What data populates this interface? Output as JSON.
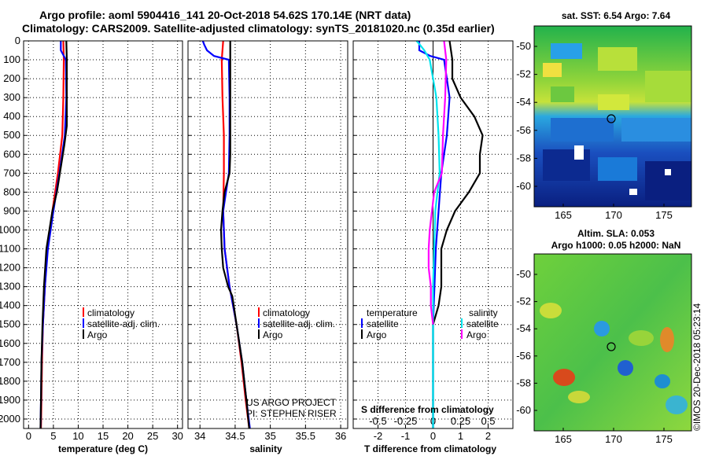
{
  "title_line1": "Argo profile: aoml 5904416_141 20-Oct-2018 54.62S 170.14E (NRT data)",
  "title_line2": "Climatology: CARS2009. Satellite-adjusted climatology: synTS_20181020.nc (0.35d earlier)",
  "depth_ticks": [
    "0",
    "100",
    "200",
    "300",
    "400",
    "500",
    "600",
    "700",
    "800",
    "900",
    "1000",
    "1100",
    "1200",
    "1300",
    "1400",
    "1500",
    "1600",
    "1700",
    "1800",
    "1900",
    "2000"
  ],
  "colors": {
    "climatology": "#ff0000",
    "satellite": "#0000ff",
    "argo": "#000000",
    "sat_salinity": "#00e5ee",
    "clim_salinity": "#ff00ff"
  },
  "panels": {
    "temperature": {
      "xlabel": "temperature (deg C)",
      "xticks": [
        "0",
        "5",
        "10",
        "15",
        "20",
        "25",
        "30"
      ],
      "legend": [
        "climatology",
        "satellite-adj. clim.",
        "Argo"
      ]
    },
    "salinity": {
      "xlabel": "salinity",
      "xticks": [
        "34",
        "34.5",
        "35",
        "35.5",
        "36"
      ],
      "legend": [
        "climatology",
        "satellite-adj. clim.",
        "Argo"
      ],
      "credit1": "US ARGO PROJECT",
      "credit2": "PI: STEPHEN RISER"
    },
    "difference": {
      "xlabel": "T difference from climatology",
      "xticks": [
        "-2",
        "-1",
        "0",
        "1",
        "2"
      ],
      "sticks": [
        "-0.5",
        "-0.25",
        "0",
        "0.25",
        "0.5"
      ],
      "slabel": "S difference from climatology",
      "legend_t_head": "temperature",
      "legend_t": [
        "satellite",
        "Argo"
      ],
      "legend_s_head": "salinity",
      "legend_s": [
        "satellite",
        "Argo"
      ]
    }
  },
  "chart_data": [
    {
      "type": "line",
      "title": "",
      "xlabel": "temperature (deg C)",
      "ylabel": "",
      "xlim": [
        -1,
        31
      ],
      "ylim": [
        2050,
        0
      ],
      "series": [
        {
          "name": "climatology",
          "depth": [
            0,
            100,
            300,
            500,
            700,
            900,
            1100,
            1300,
            1500,
            1700,
            1900,
            2050
          ],
          "values": [
            7.0,
            7.1,
            7.0,
            6.8,
            5.9,
            4.8,
            3.8,
            3.3,
            2.9,
            2.7,
            2.6,
            2.5
          ]
        },
        {
          "name": "satellite-adj. clim.",
          "depth": [
            0,
            50,
            100,
            300,
            500,
            700,
            900,
            1100,
            1300,
            1500,
            1700,
            1900,
            2050
          ],
          "values": [
            6.5,
            6.5,
            7.5,
            7.6,
            7.3,
            6.2,
            5.0,
            3.9,
            3.3,
            2.9,
            2.6,
            2.5,
            2.4
          ]
        },
        {
          "name": "Argo",
          "depth": [
            0,
            100,
            300,
            450,
            550,
            650,
            800,
            900,
            1100,
            1300,
            1500,
            1700,
            1900,
            2050
          ],
          "values": [
            7.6,
            7.7,
            7.7,
            7.7,
            7.2,
            6.6,
            5.7,
            4.8,
            3.6,
            3.1,
            2.8,
            2.6,
            2.5,
            2.4
          ]
        }
      ]
    },
    {
      "type": "line",
      "title": "",
      "xlabel": "salinity",
      "ylabel": "",
      "xlim": [
        33.83,
        36.1
      ],
      "ylim": [
        2050,
        0
      ],
      "series": [
        {
          "name": "climatology",
          "depth": [
            0,
            100,
            300,
            500,
            700,
            900,
            1100,
            1300,
            1500,
            1700,
            1900,
            2050
          ],
          "values": [
            34.33,
            34.31,
            34.32,
            34.34,
            34.34,
            34.33,
            34.35,
            34.42,
            34.52,
            34.59,
            34.65,
            34.7
          ]
        },
        {
          "name": "satellite-adj. clim.",
          "depth": [
            0,
            20,
            50,
            80,
            100,
            300,
            500,
            700,
            900,
            1100,
            1300,
            1500,
            1700,
            1900,
            2050
          ],
          "values": [
            34.04,
            34.06,
            34.1,
            34.2,
            34.41,
            34.42,
            34.42,
            34.41,
            34.33,
            34.35,
            34.42,
            34.52,
            34.6,
            34.66,
            34.71
          ]
        },
        {
          "name": "Argo",
          "depth": [
            0,
            100,
            300,
            600,
            700,
            800,
            900,
            1000,
            1100,
            1200,
            1300,
            1350,
            1500,
            1700,
            1900,
            2050
          ],
          "values": [
            34.43,
            34.43,
            34.43,
            34.43,
            34.42,
            34.35,
            34.32,
            34.3,
            34.31,
            34.33,
            34.4,
            34.46,
            34.52,
            34.6,
            34.66,
            34.7
          ]
        }
      ]
    },
    {
      "type": "line",
      "title": "",
      "xlabel": "T difference from climatology",
      "xlabel2": "S difference from climatology",
      "ylabel": "",
      "xlim": [
        -2.9,
        2.9
      ],
      "x2lim": [
        -0.725,
        0.725
      ],
      "ylim": [
        2050,
        0
      ],
      "series": [
        {
          "name": "temperature satellite",
          "axis": "T",
          "depth": [
            0,
            25,
            50,
            80,
            100,
            300,
            500,
            700,
            900,
            1100,
            1300,
            1500,
            1700,
            1900,
            2050
          ],
          "values": [
            -0.5,
            -0.5,
            -0.5,
            -0.1,
            0.4,
            0.6,
            0.5,
            0.3,
            0.2,
            0.1,
            0.05,
            0.0,
            0.0,
            0.0,
            0.0
          ]
        },
        {
          "name": "temperature Argo",
          "axis": "T",
          "depth": [
            0,
            100,
            200,
            300,
            400,
            500,
            600,
            700,
            800,
            900,
            1000,
            1100,
            1300,
            1400,
            1500,
            1700,
            1900,
            2050
          ],
          "values": [
            0.6,
            0.7,
            0.7,
            1.0,
            1.5,
            1.8,
            1.7,
            1.7,
            1.3,
            0.8,
            0.5,
            0.3,
            0.3,
            0.2,
            0.0,
            0.0,
            0.0,
            0.0
          ]
        },
        {
          "name": "salinity satellite",
          "axis": "S",
          "depth": [
            0,
            20,
            50,
            100,
            300,
            500,
            700,
            900,
            1100,
            1300,
            1500,
            1700,
            1900,
            2050
          ],
          "values": [
            -0.15,
            -0.12,
            -0.08,
            -0.03,
            0.03,
            0.05,
            0.06,
            0.02,
            0.01,
            0.0,
            0.0,
            0.0,
            0.0,
            0.0
          ]
        },
        {
          "name": "salinity Argo",
          "axis": "S",
          "depth": [
            0,
            100,
            300,
            500,
            700,
            800,
            900,
            1000,
            1100,
            1200,
            1300,
            1400,
            1500
          ],
          "values": [
            0.1,
            0.12,
            0.11,
            0.09,
            0.08,
            0.01,
            -0.01,
            -0.03,
            -0.04,
            -0.04,
            -0.02,
            -0.02,
            0.0
          ]
        }
      ]
    }
  ],
  "maps": {
    "sst": {
      "title": "sat. SST: 6.54 Argo: 7.64",
      "lat_ticks": [
        "-50",
        "-52",
        "-54",
        "-56",
        "-58",
        "-60"
      ],
      "lon_ticks": [
        "165",
        "170",
        "175"
      ]
    },
    "sla": {
      "title1": "Altim. SLA: 0.053",
      "title2": "Argo h1000: 0.05 h2000: NaN",
      "lat_ticks": [
        "-50",
        "-52",
        "-54",
        "-56",
        "-58",
        "-60"
      ],
      "lon_ticks": [
        "165",
        "170",
        "175"
      ]
    }
  },
  "watermark": "©IMOS 20-Dec-2018 05:23:14"
}
